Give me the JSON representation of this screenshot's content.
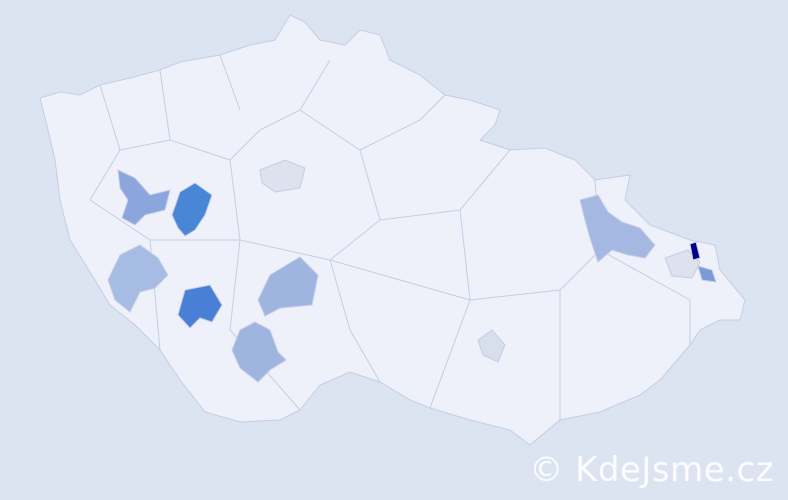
{
  "map": {
    "base_color": "#eef1fa",
    "border_color": "#c5cde6",
    "background": "#dce4f2",
    "highlighted_regions": [
      {
        "color": "#00008b",
        "shade": "darkest"
      },
      {
        "color": "#4a86d6",
        "shade": "strong"
      },
      {
        "color": "#4a7fd6",
        "shade": "strong"
      },
      {
        "color": "#8aa6dc",
        "shade": "medium"
      },
      {
        "color": "#a7bce2",
        "shade": "light"
      },
      {
        "color": "#a0b4e0",
        "shade": "light"
      },
      {
        "color": "#a0b4e0",
        "shade": "light"
      },
      {
        "color": "#a4b8e2",
        "shade": "light"
      },
      {
        "color": "#7b9ad8",
        "shade": "medium"
      },
      {
        "color": "#dde2ee",
        "shade": "faint"
      },
      {
        "color": "#dde2ee",
        "shade": "faint"
      },
      {
        "color": "#d8deec",
        "shade": "faint"
      }
    ]
  },
  "watermark": "© KdeJsme.cz"
}
